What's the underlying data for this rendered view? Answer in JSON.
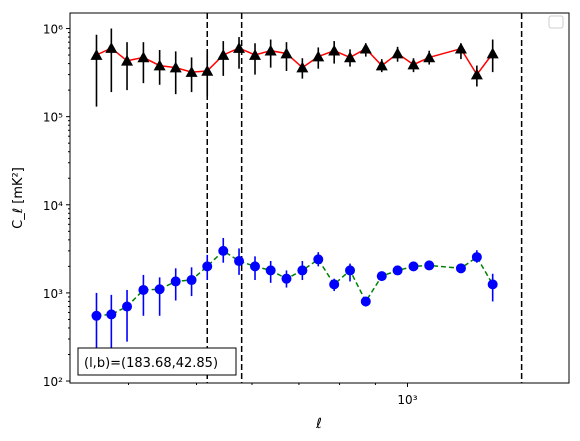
{
  "chart_data": {
    "type": "scatter",
    "title": "",
    "xlabel": "ℓ",
    "ylabel": "C_ℓ [mK²]",
    "xscale": "log",
    "yscale": "log",
    "xlim": [
      330,
      1700
    ],
    "ylim": [
      95,
      1500000
    ],
    "x_ticks": [
      {
        "value": 1000,
        "label": "10³"
      }
    ],
    "y_ticks": [
      {
        "value": 100,
        "label": "10²"
      },
      {
        "value": 1000,
        "label": "10³"
      },
      {
        "value": 10000,
        "label": "10⁴"
      },
      {
        "value": 100000,
        "label": "10⁵"
      },
      {
        "value": 1000000,
        "label": "10⁶"
      }
    ],
    "legend": {
      "placement": "upper-right",
      "entries": []
    },
    "annotation": "(l,b)=(183.68,42.85)",
    "vertical_lines": [
      518,
      580,
      1455
    ],
    "x": [
      360,
      378,
      398,
      420,
      443,
      467,
      492,
      518,
      546,
      575,
      606,
      638,
      672,
      708,
      746,
      786,
      828,
      872,
      919,
      968,
      1020,
      1074,
      1131,
      1192,
      1256,
      1323,
      1394,
      1468,
      1546,
      1600
    ],
    "series": [
      {
        "marker": "triangle",
        "color": "#000000",
        "line_color": "#ff0000",
        "line_style": "solid",
        "values": [
          500000,
          600000,
          430000,
          470000,
          380000,
          360000,
          320000,
          330000,
          500000,
          600000,
          500000,
          560000,
          520000,
          360000,
          480000,
          560000,
          470000,
          590000,
          380000,
          520000,
          390000,
          470000,
          590000,
          300000,
          520000
        ],
        "x_index_map": [
          0,
          1,
          2,
          3,
          4,
          5,
          6,
          7,
          8,
          9,
          10,
          11,
          12,
          13,
          14,
          15,
          16,
          17,
          18,
          19,
          20,
          21,
          23,
          24,
          25
        ],
        "err_low": [
          130000,
          190000,
          200000,
          240000,
          230000,
          180000,
          190000,
          170000,
          290000,
          350000,
          300000,
          360000,
          330000,
          270000,
          350000,
          400000,
          370000,
          480000,
          320000,
          420000,
          320000,
          390000,
          450000,
          220000,
          320000
        ],
        "err_high": [
          850000,
          1000000,
          700000,
          700000,
          570000,
          550000,
          470000,
          560000,
          720000,
          800000,
          680000,
          750000,
          700000,
          460000,
          610000,
          720000,
          580000,
          680000,
          450000,
          620000,
          460000,
          560000,
          680000,
          380000,
          750000
        ]
      },
      {
        "marker": "circle",
        "color": "#0000ff",
        "line_color": "#008000",
        "line_style": "dashed",
        "values": [
          550,
          570,
          700,
          1080,
          1100,
          1350,
          1400,
          2000,
          3000,
          2300,
          2000,
          1800,
          1450,
          1800,
          2400,
          1250,
          1800,
          800,
          1550,
          1800,
          2000,
          2050,
          1900,
          2550,
          1250
        ],
        "x_index_map": [
          0,
          1,
          2,
          3,
          4,
          5,
          6,
          7,
          8,
          9,
          10,
          11,
          12,
          13,
          14,
          15,
          16,
          17,
          18,
          19,
          20,
          21,
          23,
          24,
          25
        ],
        "err_low": [
          200,
          200,
          280,
          550,
          550,
          820,
          920,
          1400,
          2200,
          1600,
          1400,
          1300,
          1150,
          1400,
          2000,
          1050,
          1350,
          700,
          1400,
          1700,
          1850,
          1900,
          1700,
          2200,
          800
        ],
        "err_high": [
          1000,
          950,
          1080,
          1600,
          1500,
          1900,
          1950,
          2700,
          4200,
          3200,
          2600,
          2300,
          1800,
          2300,
          2900,
          1450,
          2150,
          900,
          1700,
          1950,
          2150,
          2200,
          2100,
          3050,
          1650
        ]
      }
    ]
  }
}
